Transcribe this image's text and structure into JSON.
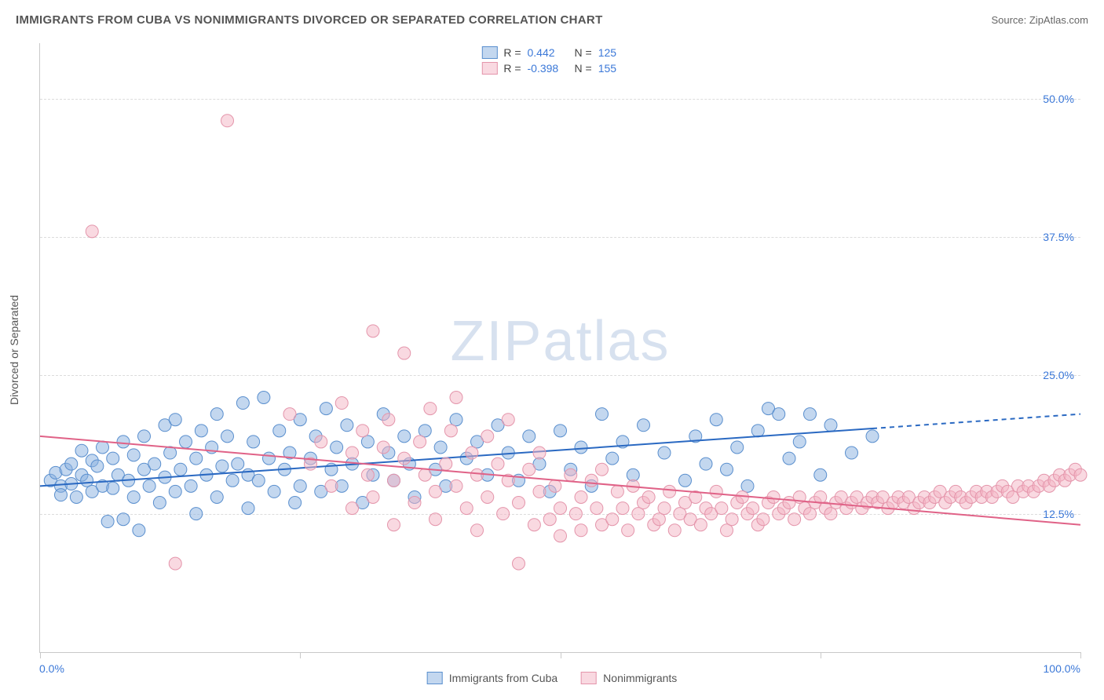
{
  "title": "IMMIGRANTS FROM CUBA VS NONIMMIGRANTS DIVORCED OR SEPARATED CORRELATION CHART",
  "source_label": "Source: ",
  "source_value": "ZipAtlas.com",
  "watermark": "ZIPatlas",
  "y_axis_label": "Divorced or Separated",
  "chart": {
    "type": "scatter",
    "xlim": [
      0,
      100
    ],
    "ylim": [
      0,
      55
    ],
    "x_tick_positions": [
      0,
      25,
      50,
      75,
      100
    ],
    "x_tick_labels_shown": {
      "0": "0.0%",
      "100": "100.0%"
    },
    "y_gridlines": [
      12.5,
      25.0,
      37.5,
      50.0
    ],
    "y_tick_labels": [
      "12.5%",
      "25.0%",
      "37.5%",
      "50.0%"
    ],
    "background_color": "#ffffff",
    "grid_color": "#dcdcdc",
    "axis_color": "#c9c9c9",
    "tick_label_color": "#3b78d8",
    "marker_radius": 8,
    "marker_opacity": 0.55,
    "line_width": 2,
    "series": [
      {
        "id": "immigrants",
        "label": "Immigrants from Cuba",
        "color": "#6fa3df",
        "fill": "rgba(135,175,224,0.5)",
        "stroke": "#5a8fce",
        "trend_color": "#2a69c2",
        "trend": {
          "x1": 0,
          "y1": 15.0,
          "x2": 80,
          "y2": 20.2,
          "dash_x2": 100,
          "dash_y2": 21.5
        },
        "R": "0.442",
        "N": "125",
        "points": [
          [
            1,
            15.5
          ],
          [
            1.5,
            16.2
          ],
          [
            2,
            15.0
          ],
          [
            2,
            14.2
          ],
          [
            2.5,
            16.5
          ],
          [
            3,
            17.0
          ],
          [
            3,
            15.2
          ],
          [
            3.5,
            14.0
          ],
          [
            4,
            16.0
          ],
          [
            4,
            18.2
          ],
          [
            4.5,
            15.5
          ],
          [
            5,
            17.3
          ],
          [
            5,
            14.5
          ],
          [
            5.5,
            16.8
          ],
          [
            6,
            15.0
          ],
          [
            6,
            18.5
          ],
          [
            6.5,
            11.8
          ],
          [
            7,
            17.5
          ],
          [
            7,
            14.8
          ],
          [
            7.5,
            16.0
          ],
          [
            8,
            12.0
          ],
          [
            8,
            19.0
          ],
          [
            8.5,
            15.5
          ],
          [
            9,
            17.8
          ],
          [
            9,
            14.0
          ],
          [
            9.5,
            11.0
          ],
          [
            10,
            16.5
          ],
          [
            10,
            19.5
          ],
          [
            10.5,
            15.0
          ],
          [
            11,
            17.0
          ],
          [
            11.5,
            13.5
          ],
          [
            12,
            20.5
          ],
          [
            12,
            15.8
          ],
          [
            12.5,
            18.0
          ],
          [
            13,
            14.5
          ],
          [
            13,
            21.0
          ],
          [
            13.5,
            16.5
          ],
          [
            14,
            19.0
          ],
          [
            14.5,
            15.0
          ],
          [
            15,
            17.5
          ],
          [
            15,
            12.5
          ],
          [
            15.5,
            20.0
          ],
          [
            16,
            16.0
          ],
          [
            16.5,
            18.5
          ],
          [
            17,
            14.0
          ],
          [
            17,
            21.5
          ],
          [
            17.5,
            16.8
          ],
          [
            18,
            19.5
          ],
          [
            18.5,
            15.5
          ],
          [
            19,
            17.0
          ],
          [
            19.5,
            22.5
          ],
          [
            20,
            16.0
          ],
          [
            20,
            13.0
          ],
          [
            20.5,
            19.0
          ],
          [
            21,
            15.5
          ],
          [
            21.5,
            23.0
          ],
          [
            22,
            17.5
          ],
          [
            22.5,
            14.5
          ],
          [
            23,
            20.0
          ],
          [
            23.5,
            16.5
          ],
          [
            24,
            18.0
          ],
          [
            24.5,
            13.5
          ],
          [
            25,
            21.0
          ],
          [
            25,
            15.0
          ],
          [
            26,
            17.5
          ],
          [
            26.5,
            19.5
          ],
          [
            27,
            14.5
          ],
          [
            27.5,
            22.0
          ],
          [
            28,
            16.5
          ],
          [
            28.5,
            18.5
          ],
          [
            29,
            15.0
          ],
          [
            29.5,
            20.5
          ],
          [
            30,
            17.0
          ],
          [
            31,
            13.5
          ],
          [
            31.5,
            19.0
          ],
          [
            32,
            16.0
          ],
          [
            33,
            21.5
          ],
          [
            33.5,
            18.0
          ],
          [
            34,
            15.5
          ],
          [
            35,
            19.5
          ],
          [
            35.5,
            17.0
          ],
          [
            36,
            14.0
          ],
          [
            37,
            20.0
          ],
          [
            38,
            16.5
          ],
          [
            38.5,
            18.5
          ],
          [
            39,
            15.0
          ],
          [
            40,
            21.0
          ],
          [
            41,
            17.5
          ],
          [
            42,
            19.0
          ],
          [
            43,
            16.0
          ],
          [
            44,
            20.5
          ],
          [
            45,
            18.0
          ],
          [
            46,
            15.5
          ],
          [
            47,
            19.5
          ],
          [
            48,
            17.0
          ],
          [
            49,
            14.5
          ],
          [
            50,
            20.0
          ],
          [
            51,
            16.5
          ],
          [
            52,
            18.5
          ],
          [
            53,
            15.0
          ],
          [
            54,
            21.5
          ],
          [
            55,
            17.5
          ],
          [
            56,
            19.0
          ],
          [
            57,
            16.0
          ],
          [
            58,
            20.5
          ],
          [
            60,
            18.0
          ],
          [
            62,
            15.5
          ],
          [
            63,
            19.5
          ],
          [
            64,
            17.0
          ],
          [
            65,
            21.0
          ],
          [
            66,
            16.5
          ],
          [
            67,
            18.5
          ],
          [
            68,
            15.0
          ],
          [
            69,
            20.0
          ],
          [
            70,
            22.0
          ],
          [
            71,
            21.5
          ],
          [
            72,
            17.5
          ],
          [
            73,
            19.0
          ],
          [
            74,
            21.5
          ],
          [
            75,
            16.0
          ],
          [
            76,
            20.5
          ],
          [
            78,
            18.0
          ],
          [
            80,
            19.5
          ]
        ]
      },
      {
        "id": "nonimmigrants",
        "label": "Nonimmigrants",
        "color": "#efadbf",
        "fill": "rgba(244,180,196,0.5)",
        "stroke": "#e495ab",
        "trend_color": "#e06287",
        "trend": {
          "x1": 0,
          "y1": 19.5,
          "x2": 100,
          "y2": 11.5
        },
        "R": "-0.398",
        "N": "155",
        "points": [
          [
            5,
            38.0
          ],
          [
            13,
            8.0
          ],
          [
            18,
            48.0
          ],
          [
            24,
            21.5
          ],
          [
            26,
            17.0
          ],
          [
            27,
            19.0
          ],
          [
            28,
            15.0
          ],
          [
            29,
            22.5
          ],
          [
            30,
            18.0
          ],
          [
            30,
            13.0
          ],
          [
            31,
            20.0
          ],
          [
            31.5,
            16.0
          ],
          [
            32,
            29.0
          ],
          [
            32,
            14.0
          ],
          [
            33,
            18.5
          ],
          [
            33.5,
            21.0
          ],
          [
            34,
            15.5
          ],
          [
            34,
            11.5
          ],
          [
            35,
            27.0
          ],
          [
            35,
            17.5
          ],
          [
            36,
            13.5
          ],
          [
            36.5,
            19.0
          ],
          [
            37,
            16.0
          ],
          [
            37.5,
            22.0
          ],
          [
            38,
            14.5
          ],
          [
            38,
            12.0
          ],
          [
            39,
            17.0
          ],
          [
            39.5,
            20.0
          ],
          [
            40,
            15.0
          ],
          [
            40,
            23.0
          ],
          [
            41,
            13.0
          ],
          [
            41.5,
            18.0
          ],
          [
            42,
            16.0
          ],
          [
            42,
            11.0
          ],
          [
            43,
            19.5
          ],
          [
            43,
            14.0
          ],
          [
            44,
            17.0
          ],
          [
            44.5,
            12.5
          ],
          [
            45,
            15.5
          ],
          [
            45,
            21.0
          ],
          [
            46,
            8.0
          ],
          [
            46,
            13.5
          ],
          [
            47,
            16.5
          ],
          [
            47.5,
            11.5
          ],
          [
            48,
            14.5
          ],
          [
            48,
            18.0
          ],
          [
            49,
            12.0
          ],
          [
            49.5,
            15.0
          ],
          [
            50,
            13.0
          ],
          [
            50,
            10.5
          ],
          [
            51,
            16.0
          ],
          [
            51.5,
            12.5
          ],
          [
            52,
            14.0
          ],
          [
            52,
            11.0
          ],
          [
            53,
            15.5
          ],
          [
            53.5,
            13.0
          ],
          [
            54,
            11.5
          ],
          [
            54,
            16.5
          ],
          [
            55,
            12.0
          ],
          [
            55.5,
            14.5
          ],
          [
            56,
            13.0
          ],
          [
            56.5,
            11.0
          ],
          [
            57,
            15.0
          ],
          [
            57.5,
            12.5
          ],
          [
            58,
            13.5
          ],
          [
            58.5,
            14.0
          ],
          [
            59,
            11.5
          ],
          [
            59.5,
            12.0
          ],
          [
            60,
            13.0
          ],
          [
            60.5,
            14.5
          ],
          [
            61,
            11.0
          ],
          [
            61.5,
            12.5
          ],
          [
            62,
            13.5
          ],
          [
            62.5,
            12.0
          ],
          [
            63,
            14.0
          ],
          [
            63.5,
            11.5
          ],
          [
            64,
            13.0
          ],
          [
            64.5,
            12.5
          ],
          [
            65,
            14.5
          ],
          [
            65.5,
            13.0
          ],
          [
            66,
            11.0
          ],
          [
            66.5,
            12.0
          ],
          [
            67,
            13.5
          ],
          [
            67.5,
            14.0
          ],
          [
            68,
            12.5
          ],
          [
            68.5,
            13.0
          ],
          [
            69,
            11.5
          ],
          [
            69.5,
            12.0
          ],
          [
            70,
            13.5
          ],
          [
            70.5,
            14.0
          ],
          [
            71,
            12.5
          ],
          [
            71.5,
            13.0
          ],
          [
            72,
            13.5
          ],
          [
            72.5,
            12.0
          ],
          [
            73,
            14.0
          ],
          [
            73.5,
            13.0
          ],
          [
            74,
            12.5
          ],
          [
            74.5,
            13.5
          ],
          [
            75,
            14.0
          ],
          [
            75.5,
            13.0
          ],
          [
            76,
            12.5
          ],
          [
            76.5,
            13.5
          ],
          [
            77,
            14.0
          ],
          [
            77.5,
            13.0
          ],
          [
            78,
            13.5
          ],
          [
            78.5,
            14.0
          ],
          [
            79,
            13.0
          ],
          [
            79.5,
            13.5
          ],
          [
            80,
            14.0
          ],
          [
            80.5,
            13.5
          ],
          [
            81,
            14.0
          ],
          [
            81.5,
            13.0
          ],
          [
            82,
            13.5
          ],
          [
            82.5,
            14.0
          ],
          [
            83,
            13.5
          ],
          [
            83.5,
            14.0
          ],
          [
            84,
            13.0
          ],
          [
            84.5,
            13.5
          ],
          [
            85,
            14.0
          ],
          [
            85.5,
            13.5
          ],
          [
            86,
            14.0
          ],
          [
            86.5,
            14.5
          ],
          [
            87,
            13.5
          ],
          [
            87.5,
            14.0
          ],
          [
            88,
            14.5
          ],
          [
            88.5,
            14.0
          ],
          [
            89,
            13.5
          ],
          [
            89.5,
            14.0
          ],
          [
            90,
            14.5
          ],
          [
            90.5,
            14.0
          ],
          [
            91,
            14.5
          ],
          [
            91.5,
            14.0
          ],
          [
            92,
            14.5
          ],
          [
            92.5,
            15.0
          ],
          [
            93,
            14.5
          ],
          [
            93.5,
            14.0
          ],
          [
            94,
            15.0
          ],
          [
            94.5,
            14.5
          ],
          [
            95,
            15.0
          ],
          [
            95.5,
            14.5
          ],
          [
            96,
            15.0
          ],
          [
            96.5,
            15.5
          ],
          [
            97,
            15.0
          ],
          [
            97.5,
            15.5
          ],
          [
            98,
            16.0
          ],
          [
            98.5,
            15.5
          ],
          [
            99,
            16.0
          ],
          [
            99.5,
            16.5
          ],
          [
            100,
            16.0
          ]
        ]
      }
    ]
  },
  "legend_stats": {
    "R_label": "R =",
    "N_label": "N ="
  }
}
